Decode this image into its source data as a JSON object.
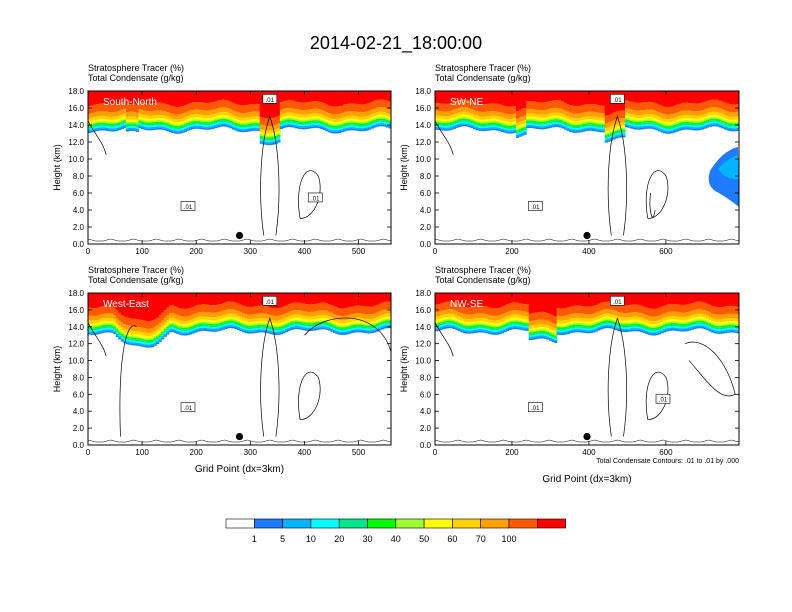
{
  "title": "2014-02-21_18:00:00",
  "footnote": "Total Condensate Contours: .01 to .01 by .000",
  "xlabel": "Grid Point (dx=3km)",
  "colors": {
    "levels": [
      "#ffffff",
      "#1e7bff",
      "#00b4ff",
      "#00ffff",
      "#00e68c",
      "#00ff00",
      "#a0ff32",
      "#ffff00",
      "#ffd200",
      "#ffa000",
      "#ff5a00",
      "#ff0000"
    ]
  },
  "chart_data": [
    {
      "type": "contour",
      "label": "South-North",
      "header": [
        "Stratosphere Tracer   (%)",
        "Total Condensate   (g/kg)"
      ],
      "ylabel": "Height (km)",
      "xlabel": "",
      "xlim": [
        0,
        560
      ],
      "ylim": [
        0,
        18
      ],
      "xticks": [
        0,
        100,
        200,
        300,
        400,
        500
      ],
      "yticks": [
        "0.0",
        "2.0",
        "4.0",
        "6.0",
        "8.0",
        "10.0",
        "12.0",
        "14.0",
        "16.0",
        "18.0"
      ],
      "contour_labels": [
        ".01",
        ".01",
        ".01"
      ],
      "marker_x": 280,
      "marker_y": 1.0
    },
    {
      "type": "contour",
      "label": "SW-NE",
      "header": [
        "Stratosphere Tracer   (%)",
        "Total Condensate   (g/kg)"
      ],
      "ylabel": "Height (km)",
      "xlabel": "",
      "xlim": [
        0,
        790
      ],
      "ylim": [
        0,
        18
      ],
      "xticks": [
        0,
        200,
        400,
        600
      ],
      "yticks": [
        "0.0",
        "2.0",
        "4.0",
        "6.0",
        "8.0",
        "10.0",
        "12.0",
        "14.0",
        "16.0",
        "18.0"
      ],
      "contour_labels": [
        ".01",
        ".01"
      ],
      "marker_x": 395,
      "marker_y": 1.0
    },
    {
      "type": "contour",
      "label": "West-East",
      "header": [
        "Stratosphere Tracer   (%)",
        "Total Condensate   (g/kg)"
      ],
      "ylabel": "Height (km)",
      "xlabel": "Grid Point (dx=3km)",
      "xlim": [
        0,
        560
      ],
      "ylim": [
        0,
        18
      ],
      "xticks": [
        0,
        100,
        200,
        300,
        400,
        500
      ],
      "yticks": [
        "0.0",
        "2.0",
        "4.0",
        "6.0",
        "8.0",
        "10.0",
        "12.0",
        "14.0",
        "16.0",
        "18.0"
      ],
      "contour_labels": [
        ".01",
        ".01"
      ],
      "marker_x": 280,
      "marker_y": 1.0
    },
    {
      "type": "contour",
      "label": "NW-SE",
      "header": [
        "Stratosphere Tracer   (%)",
        "Total Condensate   (g/kg)"
      ],
      "ylabel": "Height (km)",
      "xlabel": "Grid Point (dx=3km)",
      "xlim": [
        0,
        790
      ],
      "ylim": [
        0,
        18
      ],
      "xticks": [
        0,
        200,
        400,
        600
      ],
      "yticks": [
        "0.0",
        "2.0",
        "4.0",
        "6.0",
        "8.0",
        "10.0",
        "12.0",
        "14.0",
        "16.0",
        "18.0"
      ],
      "contour_labels": [
        ".01",
        ".01",
        ".01"
      ],
      "marker_x": 395,
      "marker_y": 1.0
    }
  ],
  "colorbar": {
    "labels": [
      "1",
      "5",
      "10",
      "20",
      "30",
      "40",
      "50",
      "60",
      "70",
      "100"
    ]
  }
}
